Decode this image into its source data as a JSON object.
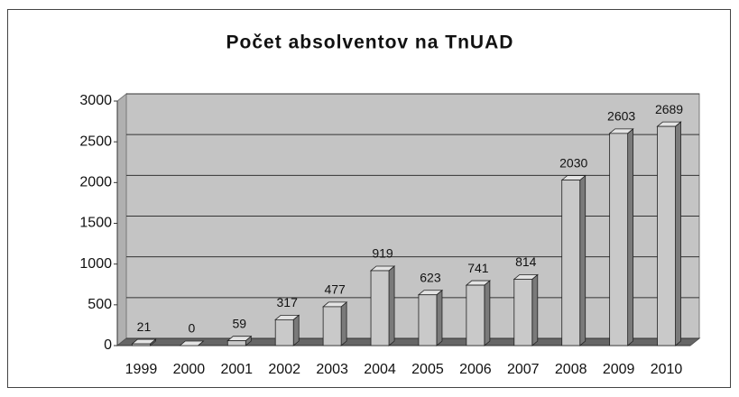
{
  "chart_data": {
    "type": "bar",
    "title": "Počet absolventov na TnUAD",
    "categories": [
      "1999",
      "2000",
      "2001",
      "2002",
      "2003",
      "2004",
      "2005",
      "2006",
      "2007",
      "2008",
      "2009",
      "2010"
    ],
    "values": [
      21,
      0,
      59,
      317,
      477,
      919,
      623,
      741,
      814,
      2030,
      2603,
      2689
    ],
    "color": "#c9c9c9",
    "ylim": [
      0,
      3000
    ],
    "yticks": [
      0,
      500,
      1000,
      1500,
      2000,
      2500,
      3000
    ],
    "grid": true
  }
}
